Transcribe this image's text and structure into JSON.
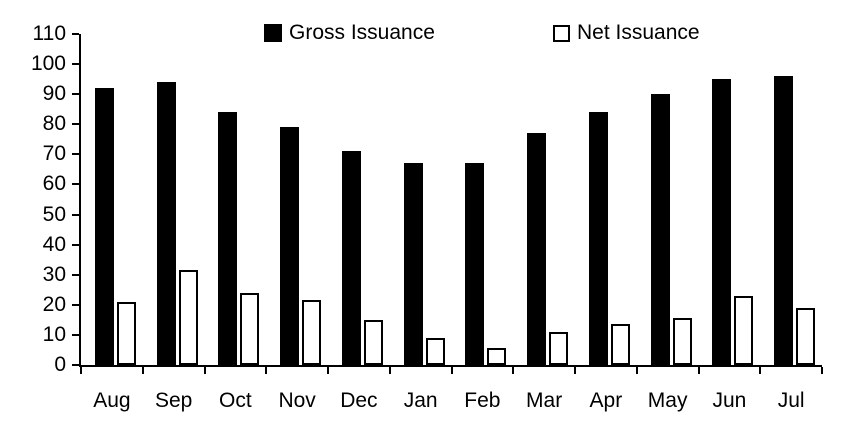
{
  "chart_data": {
    "type": "bar",
    "title": "",
    "xlabel": "",
    "ylabel": "",
    "categories": [
      "Aug",
      "Sep",
      "Oct",
      "Nov",
      "Dec",
      "Jan",
      "Feb",
      "Mar",
      "Apr",
      "May",
      "Jun",
      "Jul"
    ],
    "series": [
      {
        "name": "Gross Issuance",
        "style": "solid",
        "color": "#000000",
        "values": [
          92,
          94,
          84,
          79,
          71,
          67,
          67,
          77,
          84,
          90,
          95,
          96
        ]
      },
      {
        "name": "Net Issuance",
        "style": "outlined",
        "color": "#ffffff",
        "border_color": "#000000",
        "values": [
          21,
          31.5,
          24,
          21.5,
          15,
          9,
          5.5,
          11,
          13.5,
          15.5,
          23,
          19
        ]
      }
    ],
    "ylim": [
      0,
      110
    ],
    "yticks": [
      0,
      10,
      20,
      30,
      40,
      50,
      60,
      70,
      80,
      90,
      100,
      110
    ],
    "grid": false,
    "legend_position": "top-center",
    "axis_color": "#000000",
    "background_color": "#ffffff"
  }
}
